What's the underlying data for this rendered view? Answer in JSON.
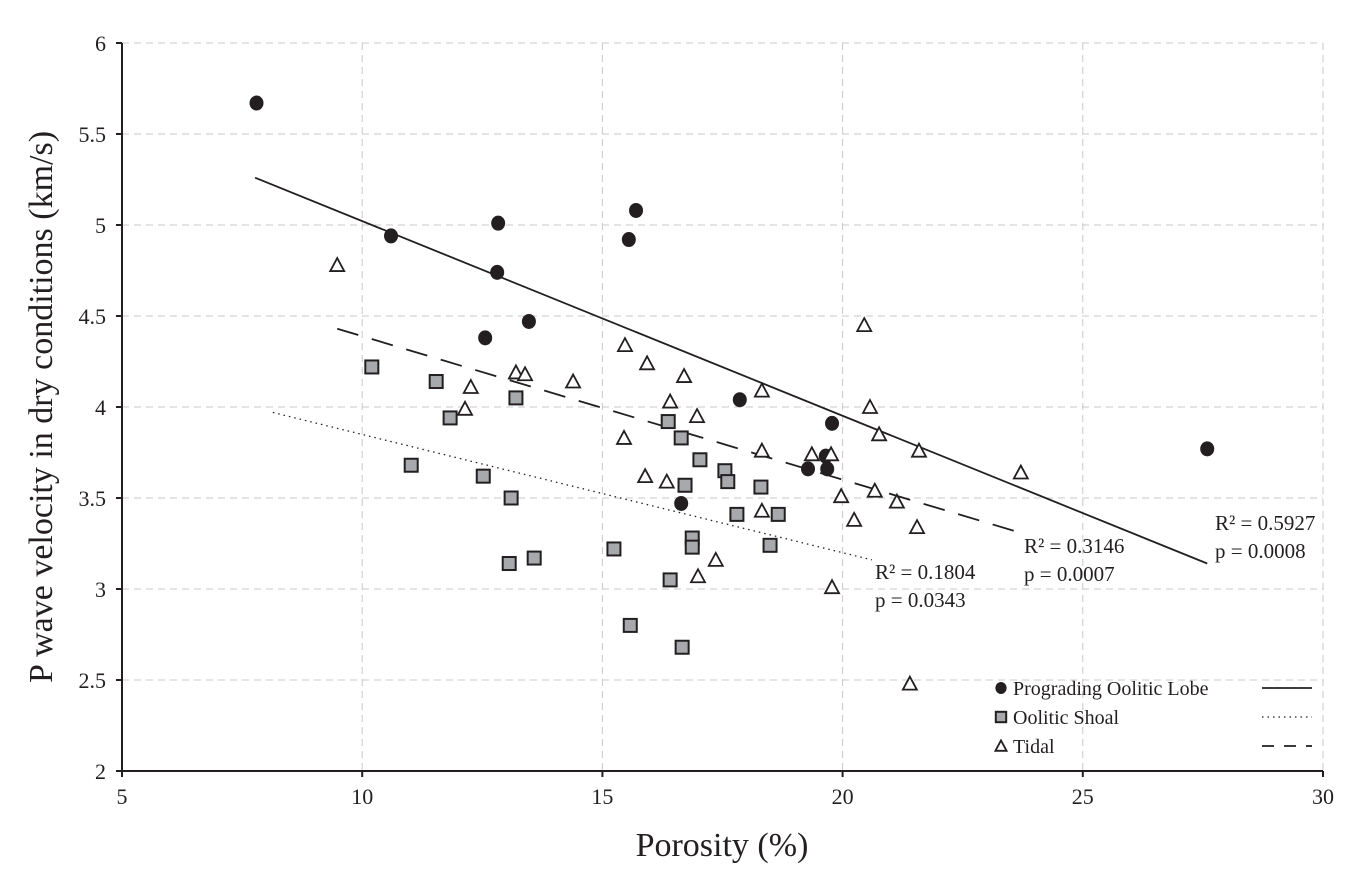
{
  "chart_data": {
    "type": "scatter",
    "xlabel": "Porosity (%)",
    "ylabel": "P wave velocity in dry conditions (km/s)",
    "xlim": [
      5,
      30
    ],
    "ylim": [
      2,
      6
    ],
    "xticks": [
      5,
      10,
      15,
      20,
      25,
      30
    ],
    "yticks": [
      2,
      2.5,
      3,
      3.5,
      4,
      4.5,
      5,
      5.5,
      6
    ],
    "ytick_labels": [
      "2",
      "2.5",
      "3",
      "3.5",
      "4",
      "4.5",
      "5",
      "5.5",
      "6"
    ],
    "grid": true,
    "legend_placement": "bottom-right",
    "colors": {
      "axis": "#231f20",
      "grid": "#c8c8c8",
      "square_fill": "#a7a9ac"
    },
    "series": [
      {
        "name": "Prograding Oolitic Lobe",
        "marker": "filled-circle",
        "trend_style": "solid",
        "points": [
          [
            7.8,
            5.67
          ],
          [
            10.6,
            4.94
          ],
          [
            12.83,
            5.01
          ],
          [
            12.81,
            4.74
          ],
          [
            12.56,
            4.38
          ],
          [
            13.47,
            4.47
          ],
          [
            15.7,
            5.08
          ],
          [
            15.55,
            4.92
          ],
          [
            17.86,
            4.04
          ],
          [
            19.78,
            3.91
          ],
          [
            19.65,
            3.73
          ],
          [
            19.28,
            3.66
          ],
          [
            19.68,
            3.66
          ],
          [
            16.64,
            3.47
          ],
          [
            27.59,
            3.77
          ]
        ],
        "trend": [
          [
            7.77,
            5.26
          ],
          [
            27.59,
            3.14
          ]
        ],
        "r2_label": "R² = 0.5927",
        "p_label": "p = 0.0008"
      },
      {
        "name": "Oolitic Shoal",
        "marker": "gray-square",
        "trend_style": "dotted",
        "points": [
          [
            10.2,
            4.22
          ],
          [
            11.54,
            4.14
          ],
          [
            11.83,
            3.94
          ],
          [
            11.02,
            3.68
          ],
          [
            13.2,
            4.05
          ],
          [
            12.52,
            3.62
          ],
          [
            13.1,
            3.5
          ],
          [
            13.06,
            3.14
          ],
          [
            13.58,
            3.17
          ],
          [
            15.24,
            3.22
          ],
          [
            15.58,
            2.8
          ],
          [
            16.66,
            2.68
          ],
          [
            16.37,
            3.92
          ],
          [
            16.64,
            3.83
          ],
          [
            16.72,
            3.57
          ],
          [
            16.87,
            3.28
          ],
          [
            16.87,
            3.23
          ],
          [
            16.41,
            3.05
          ],
          [
            17.03,
            3.71
          ],
          [
            17.55,
            3.65
          ],
          [
            17.61,
            3.59
          ],
          [
            18.3,
            3.56
          ],
          [
            17.8,
            3.41
          ],
          [
            18.66,
            3.41
          ],
          [
            18.49,
            3.24
          ]
        ],
        "trend": [
          [
            8.14,
            3.97
          ],
          [
            20.61,
            3.16
          ]
        ],
        "r2_label": "R² = 0.1804",
        "p_label": "p = 0.0343"
      },
      {
        "name": "Tidal",
        "marker": "open-triangle",
        "trend_style": "dashed",
        "points": [
          [
            9.48,
            4.78
          ],
          [
            12.26,
            4.11
          ],
          [
            12.14,
            3.99
          ],
          [
            13.2,
            4.19
          ],
          [
            13.39,
            4.18
          ],
          [
            14.39,
            4.14
          ],
          [
            15.47,
            4.34
          ],
          [
            15.93,
            4.24
          ],
          [
            16.7,
            4.17
          ],
          [
            16.41,
            4.03
          ],
          [
            15.45,
            3.83
          ],
          [
            15.89,
            3.62
          ],
          [
            16.34,
            3.59
          ],
          [
            20.45,
            4.45
          ],
          [
            16.97,
            3.95
          ],
          [
            18.32,
            4.09
          ],
          [
            20.57,
            4.0
          ],
          [
            20.76,
            3.85
          ],
          [
            21.59,
            3.76
          ],
          [
            23.71,
            3.64
          ],
          [
            18.32,
            3.76
          ],
          [
            19.36,
            3.74
          ],
          [
            19.76,
            3.74
          ],
          [
            19.97,
            3.51
          ],
          [
            20.67,
            3.54
          ],
          [
            21.13,
            3.48
          ],
          [
            18.32,
            3.43
          ],
          [
            20.24,
            3.38
          ],
          [
            21.55,
            3.34
          ],
          [
            17.36,
            3.16
          ],
          [
            16.99,
            3.07
          ],
          [
            19.78,
            3.01
          ],
          [
            21.4,
            2.48
          ]
        ],
        "trend": [
          [
            9.48,
            4.43
          ],
          [
            23.69,
            3.31
          ]
        ],
        "r2_label": "R² = 0.3146",
        "p_label": "p = 0.0007"
      }
    ]
  }
}
